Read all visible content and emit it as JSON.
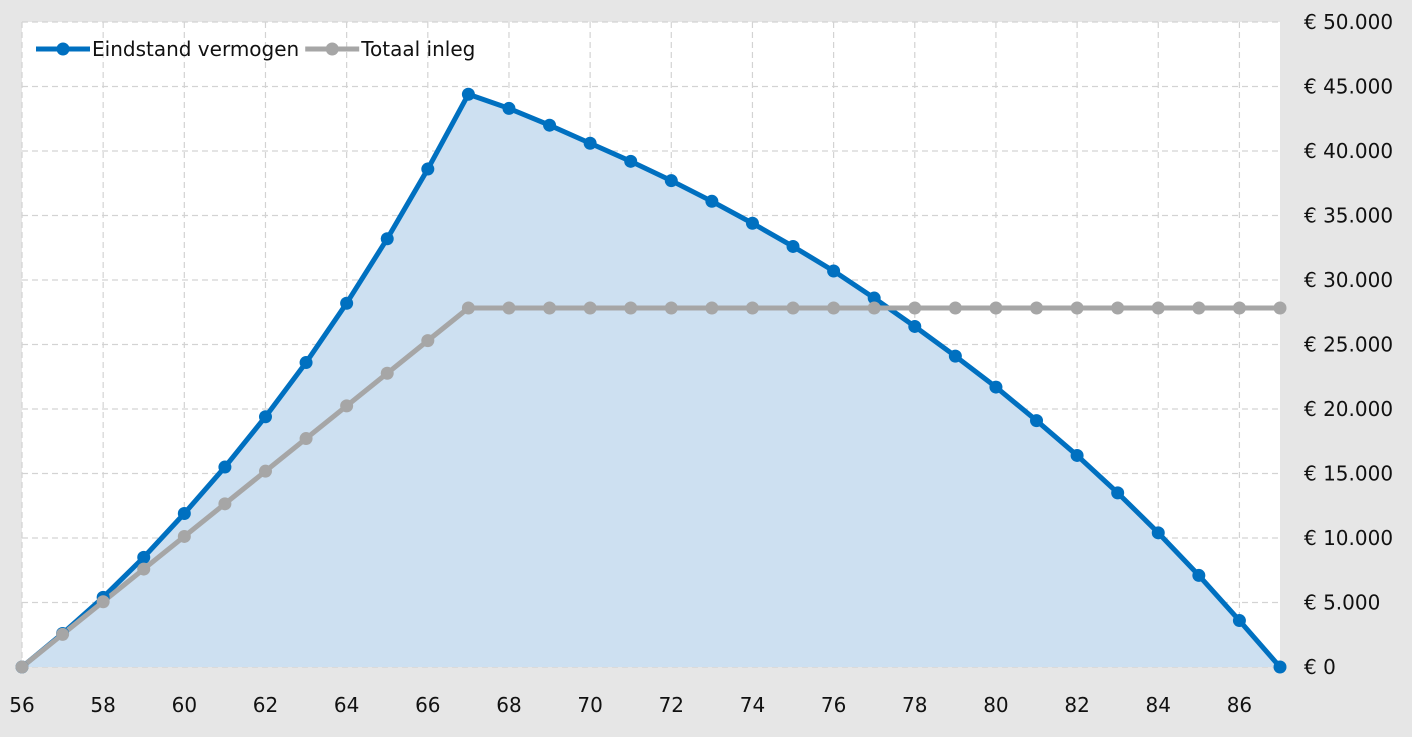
{
  "chart_data": {
    "type": "line",
    "title": "",
    "xlabel": "",
    "ylabel": "",
    "x": [
      56,
      57,
      58,
      59,
      60,
      61,
      62,
      63,
      64,
      65,
      66,
      67,
      68,
      69,
      70,
      71,
      72,
      73,
      74,
      75,
      76,
      77,
      78,
      79,
      80,
      81,
      82,
      83,
      84,
      85,
      86,
      87
    ],
    "x_ticks": [
      56,
      58,
      60,
      62,
      64,
      66,
      68,
      70,
      72,
      74,
      76,
      78,
      80,
      82,
      84,
      86
    ],
    "xlim": [
      56,
      87
    ],
    "ylim": [
      0,
      50000
    ],
    "y_ticks": [
      0,
      5000,
      10000,
      15000,
      20000,
      25000,
      30000,
      35000,
      40000,
      45000,
      50000
    ],
    "y_tick_labels": [
      "€ 0",
      "€ 5.000",
      "€ 10.000",
      "€ 15.000",
      "€ 20.000",
      "€ 25.000",
      "€ 30.000",
      "€ 35.000",
      "€ 40.000",
      "€ 45.000",
      "€ 50.000"
    ],
    "y_axis_side": "right",
    "grid": true,
    "legend_position": "top-left",
    "series": [
      {
        "name": "Eindstand vermogen",
        "color": "#0070c0",
        "fill": "#cde0f1",
        "area": true,
        "values": [
          0,
          2600,
          5400,
          8500,
          11900,
          15500,
          19400,
          23600,
          28200,
          33200,
          38600,
          44400,
          43300,
          42000,
          40600,
          39200,
          37700,
          36100,
          34400,
          32600,
          30700,
          28600,
          26400,
          24100,
          21700,
          19100,
          16400,
          13500,
          10400,
          7100,
          3600,
          0
        ]
      },
      {
        "name": "Totaal inleg",
        "color": "#a6a6a6",
        "area": false,
        "values": [
          0,
          2530,
          5060,
          7590,
          10120,
          12650,
          15180,
          17710,
          20240,
          22770,
          25300,
          27830,
          27830,
          27830,
          27830,
          27830,
          27830,
          27830,
          27830,
          27830,
          27830,
          27830,
          27830,
          27830,
          27830,
          27830,
          27830,
          27830,
          27830,
          27830,
          27830,
          27830
        ]
      }
    ]
  }
}
